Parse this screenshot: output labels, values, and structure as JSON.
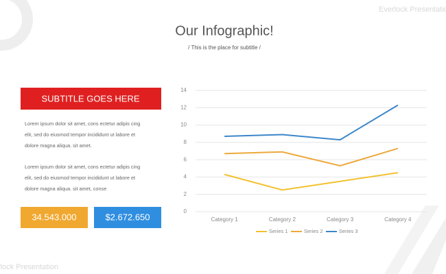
{
  "brand": "Everlock Presentation",
  "header": {
    "title": "Our Infographic!",
    "subtitle": "/ This is the place for subtitle /"
  },
  "panel": {
    "heading": "SUBTITLE GOES HERE",
    "paragraphs": [
      [
        "Lorem ipsum dolor sit amet, cons ectetur adipis cing",
        "elit, sed do eiusmod tempor incididunt ut labore et",
        "dolore magna aliqua. sit amet."
      ],
      [
        "Lorem ipsum dolor sit amet, cons ectetur adipis cing",
        "elit, sed do eiusmod tempor incididunt ut labore et",
        "dolore magna aliqua. sit amet, conse"
      ]
    ],
    "stats": [
      {
        "text": "34.543.000",
        "color": "#f0a830"
      },
      {
        "text": "$2.672.650",
        "color": "#2f8ee0"
      }
    ]
  },
  "chart_data": {
    "type": "line",
    "categories": [
      "Category 1",
      "Category 2",
      "Category 3",
      "Category 4"
    ],
    "series": [
      {
        "name": "Series 1",
        "color": "#f2c12e",
        "values": [
          4.3,
          2.5,
          3.5,
          4.5
        ]
      },
      {
        "name": "Series 2",
        "color": "#eda83a",
        "values": [
          6.7,
          6.9,
          5.3,
          7.3
        ]
      },
      {
        "name": "Series 3",
        "color": "#3a86c8",
        "values": [
          8.7,
          8.9,
          8.3,
          12.3
        ]
      }
    ],
    "ylim": [
      0,
      14
    ],
    "yticks": [
      0,
      2,
      4,
      6,
      8,
      10,
      12,
      14
    ],
    "grid": true,
    "legend": "bottom"
  }
}
